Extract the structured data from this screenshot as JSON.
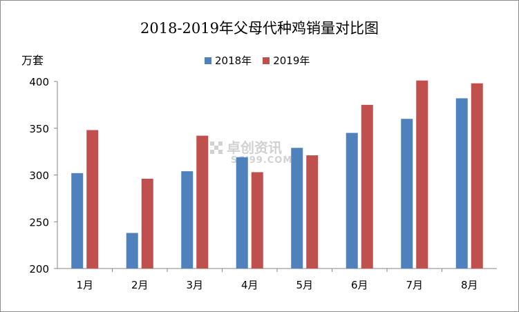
{
  "chart_data": {
    "type": "bar",
    "title": "2018-2019年父母代种鸡销量对比图",
    "ylabel": "万套",
    "xlabel": "",
    "categories": [
      "1月",
      "2月",
      "3月",
      "4月",
      "5月",
      "6月",
      "7月",
      "8月"
    ],
    "series": [
      {
        "name": "2018年",
        "color": "#4f81bd",
        "values": [
          302,
          238,
          304,
          319,
          329,
          345,
          360,
          382
        ]
      },
      {
        "name": "2019年",
        "color": "#c0504d",
        "values": [
          348,
          296,
          342,
          303,
          321,
          375,
          401,
          398
        ]
      }
    ],
    "ylim": [
      200,
      400
    ],
    "yticks": [
      200,
      250,
      300,
      350,
      400
    ],
    "grid": false,
    "legend_position": "top"
  },
  "watermark": {
    "text": "卓创资讯",
    "subtext": "SCI99.COM"
  }
}
